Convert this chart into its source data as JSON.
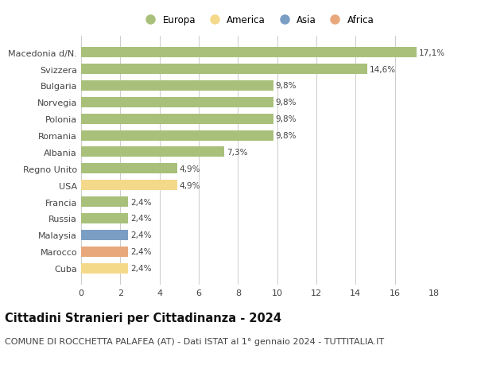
{
  "categories": [
    "Cuba",
    "Marocco",
    "Malaysia",
    "Russia",
    "Francia",
    "USA",
    "Regno Unito",
    "Albania",
    "Romania",
    "Polonia",
    "Norvegia",
    "Bulgaria",
    "Svizzera",
    "Macedonia d/N."
  ],
  "values": [
    2.4,
    2.4,
    2.4,
    2.4,
    2.4,
    4.9,
    4.9,
    7.3,
    9.8,
    9.8,
    9.8,
    9.8,
    14.6,
    17.1
  ],
  "labels": [
    "2,4%",
    "2,4%",
    "2,4%",
    "2,4%",
    "2,4%",
    "4,9%",
    "4,9%",
    "7,3%",
    "9,8%",
    "9,8%",
    "9,8%",
    "9,8%",
    "14,6%",
    "17,1%"
  ],
  "colors": [
    "#f5d98b",
    "#e8a87c",
    "#7b9ec4",
    "#a8c07a",
    "#a8c07a",
    "#f5d98b",
    "#a8c07a",
    "#a8c07a",
    "#a8c07a",
    "#a8c07a",
    "#a8c07a",
    "#a8c07a",
    "#a8c07a",
    "#a8c07a"
  ],
  "legend_labels": [
    "Europa",
    "America",
    "Asia",
    "Africa"
  ],
  "legend_colors": [
    "#a8c07a",
    "#f5d98b",
    "#7b9ec4",
    "#e8a87c"
  ],
  "title": "Cittadini Stranieri per Cittadinanza - 2024",
  "subtitle": "COMUNE DI ROCCHETTA PALAFEA (AT) - Dati ISTAT al 1° gennaio 2024 - TUTTITALIA.IT",
  "xlim": [
    0,
    18
  ],
  "xticks": [
    0,
    2,
    4,
    6,
    8,
    10,
    12,
    14,
    16,
    18
  ],
  "background_color": "#ffffff",
  "grid_color": "#cccccc",
  "bar_height": 0.62,
  "title_fontsize": 10.5,
  "subtitle_fontsize": 8,
  "label_fontsize": 7.5,
  "tick_fontsize": 8,
  "legend_fontsize": 8.5
}
